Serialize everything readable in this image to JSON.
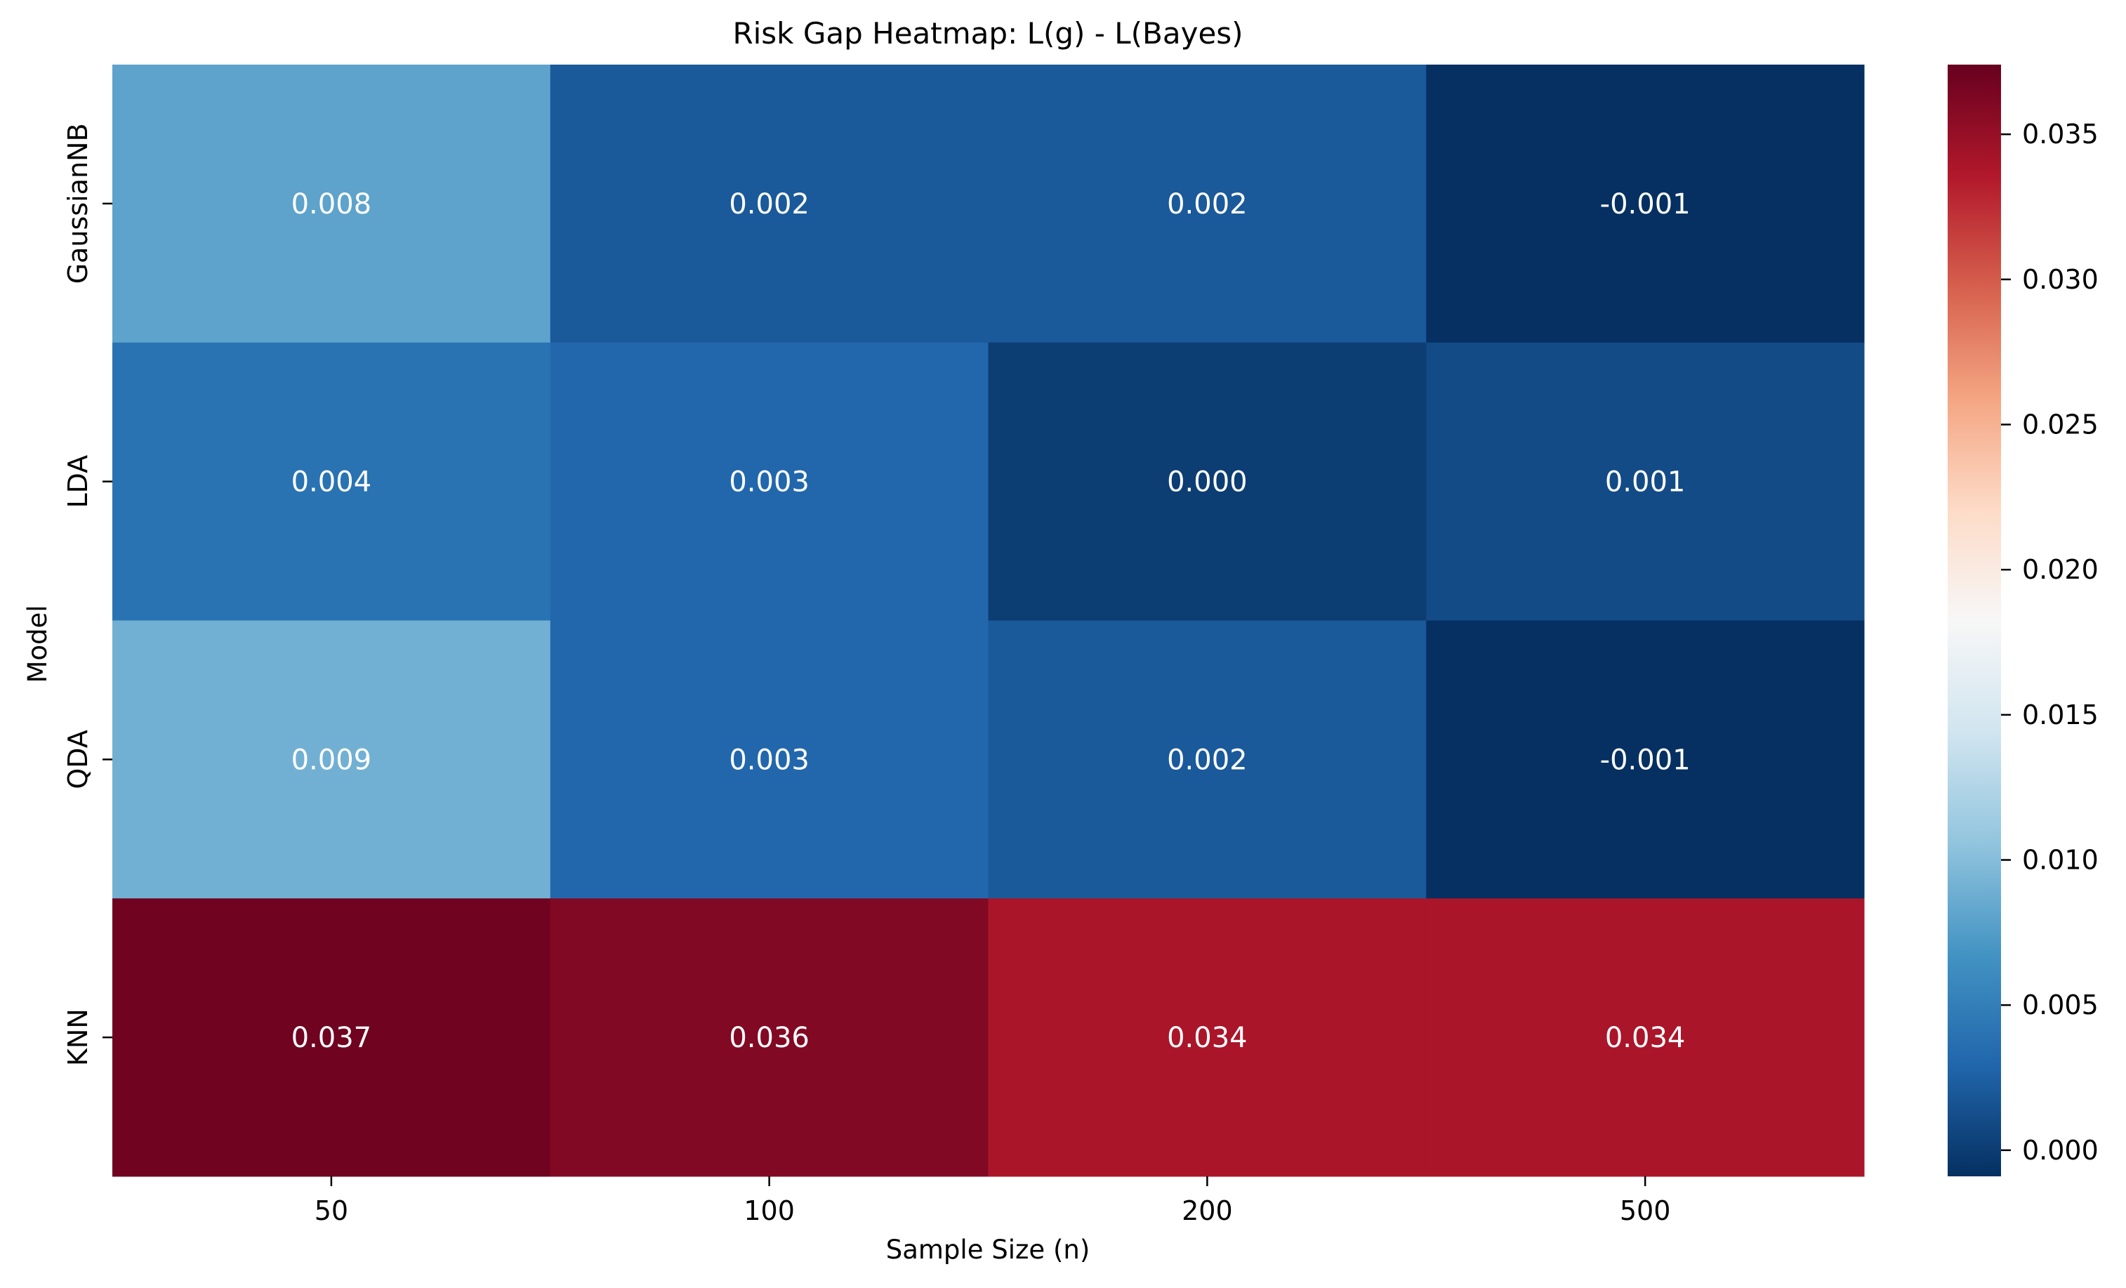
{
  "chart_data": {
    "type": "heatmap",
    "title": "Risk Gap Heatmap: L(g) - L(Bayes)",
    "xlabel": "Sample Size (n)",
    "ylabel": "Model",
    "x_categories": [
      "50",
      "100",
      "200",
      "500"
    ],
    "y_categories": [
      "GaussianNB",
      "LDA",
      "QDA",
      "KNN"
    ],
    "values": [
      [
        0.008,
        0.002,
        0.002,
        -0.001
      ],
      [
        0.004,
        0.003,
        0.0,
        0.001
      ],
      [
        0.009,
        0.003,
        0.002,
        -0.001
      ],
      [
        0.037,
        0.036,
        0.034,
        0.034
      ]
    ],
    "cell_labels": [
      [
        "0.008",
        "0.002",
        "0.002",
        "-0.001"
      ],
      [
        "0.004",
        "0.003",
        "0.000",
        "0.001"
      ],
      [
        "0.009",
        "0.003",
        "0.002",
        "-0.001"
      ],
      [
        "0.037",
        "0.036",
        "0.034",
        "0.034"
      ]
    ],
    "colormap": "RdBu_r",
    "color_range": [
      -0.0009,
      0.0374
    ],
    "colorbar": {
      "ticks": [
        0.0,
        0.005,
        0.01,
        0.015,
        0.02,
        0.025,
        0.03,
        0.035
      ],
      "tick_labels": [
        "0.000",
        "0.005",
        "0.010",
        "0.015",
        "0.020",
        "0.025",
        "0.030",
        "0.035"
      ]
    },
    "annotation_color": "#ffffff",
    "grid": false,
    "legend": "colorbar-right"
  }
}
